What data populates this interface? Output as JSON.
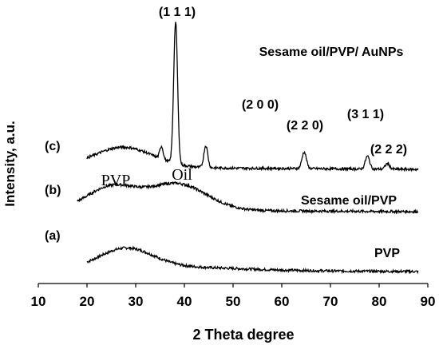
{
  "chart_data": {
    "type": "line",
    "title": "",
    "xlabel": "2 Theta degree",
    "ylabel": "Intensity, a.u.",
    "xlim": [
      10,
      90
    ],
    "x_ticks": [
      10,
      20,
      30,
      40,
      50,
      60,
      70,
      80,
      90
    ],
    "y_ticks_shown": false,
    "grid": false,
    "legend": "none",
    "series": [
      {
        "name": "PVP",
        "letter": "(a)",
        "x_start": 20,
        "x_end": 88,
        "peaks": [
          {
            "x": 28,
            "height": 0.55,
            "width": 5.5
          },
          {
            "x": 40,
            "height": 0.08,
            "width": 12
          }
        ],
        "baseline": [
          0.05,
          0.0
        ]
      },
      {
        "name": "Sesame oil/PVP",
        "letter": "(b)",
        "x_start": 18,
        "x_end": 88,
        "peaks": [
          {
            "x": 25,
            "height": 0.62,
            "width": 5
          },
          {
            "x": 38.5,
            "height": 0.72,
            "width": 6
          }
        ],
        "baseline": [
          0.05,
          0.0
        ]
      },
      {
        "name": "Sesame oil/PVP/ AuNPs",
        "letter": "(c)",
        "x_start": 20,
        "x_end": 88,
        "peaks": [
          {
            "x": 27.5,
            "height": 0.55,
            "width": 6
          },
          {
            "x": 38.2,
            "height": 3.85,
            "width": 0.4
          },
          {
            "x": 35.3,
            "height": 0.35,
            "width": 0.35
          },
          {
            "x": 44.4,
            "height": 0.6,
            "width": 0.4
          },
          {
            "x": 64.6,
            "height": 0.45,
            "width": 0.45
          },
          {
            "x": 77.6,
            "height": 0.35,
            "width": 0.45
          },
          {
            "x": 81.7,
            "height": 0.15,
            "width": 0.45
          }
        ],
        "baseline": [
          0.08,
          0.02
        ]
      }
    ],
    "annotations": [
      {
        "text": "(1 1 1)",
        "x": 38.2
      },
      {
        "text": "(2 0 0)",
        "x": 44.4
      },
      {
        "text": "(2 2 0)",
        "x": 64.6
      },
      {
        "text": "(3 1 1)",
        "x": 77.6
      },
      {
        "text": "(2 2 2)",
        "x": 81.7
      },
      {
        "text": "PVP",
        "x": 25
      },
      {
        "text": "Oil",
        "x": 38.5
      }
    ],
    "series_labels": [
      "Sesame oil/PVP/ AuNPs",
      "Sesame oil/PVP",
      "PVP"
    ]
  }
}
